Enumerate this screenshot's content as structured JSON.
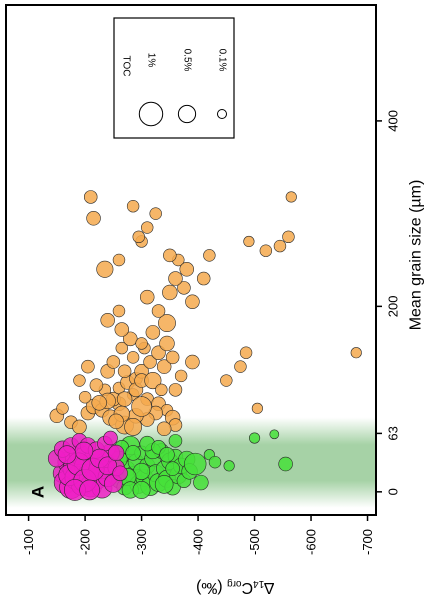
{
  "chart_data": {
    "type": "scatter",
    "orientation": "rotated-90",
    "panel_label": "A",
    "x_axis": {
      "label_main": "∆",
      "label_sub": "14",
      "label_mid": "C",
      "label_sub2": "org",
      "label_unit": " (‰)",
      "range": [
        -60,
        -715
      ],
      "ticks": [
        -100,
        -200,
        -300,
        -400,
        -500,
        -600,
        -700
      ],
      "tick_labels": [
        "-100",
        "-200",
        "-300",
        "-400",
        "-500",
        "-600",
        "-700"
      ]
    },
    "y_axis": {
      "label": "Mean grain size (µm)",
      "range": [
        -25,
        525
      ],
      "ticks": [
        0,
        63,
        200,
        400
      ],
      "tick_labels": [
        "0",
        "63",
        "200",
        "400"
      ]
    },
    "band": {
      "from": 0,
      "to": 63,
      "color": "#3a9c3a"
    },
    "legend": {
      "title": "TOC",
      "entries": [
        {
          "label": "1%",
          "toc": 1.0
        },
        {
          "label": "0.5%",
          "toc": 0.5
        },
        {
          "label": "0.1%",
          "toc": 0.1
        }
      ]
    },
    "colors": {
      "coarse": "#f5a94e",
      "mid": "#47e03a",
      "fine": "#ee1fc6"
    },
    "series": [
      {
        "group": "coarse",
        "points": [
          [
            -150,
            82,
            0.3
          ],
          [
            -160,
            90,
            0.2
          ],
          [
            -175,
            75,
            0.25
          ],
          [
            -190,
            70,
            0.3
          ],
          [
            -205,
            85,
            0.3
          ],
          [
            -215,
            92,
            0.35
          ],
          [
            -230,
            88,
            0.3
          ],
          [
            -245,
            80,
            0.4
          ],
          [
            -260,
            95,
            0.3
          ],
          [
            -270,
            72,
            0.55
          ],
          [
            -250,
            100,
            0.3
          ],
          [
            -235,
            110,
            0.2
          ],
          [
            -220,
            115,
            0.25
          ],
          [
            -260,
            112,
            0.2
          ],
          [
            -275,
            118,
            0.3
          ],
          [
            -290,
            122,
            0.25
          ],
          [
            -300,
            130,
            0.3
          ],
          [
            -315,
            140,
            0.25
          ],
          [
            -330,
            150,
            0.3
          ],
          [
            -345,
            160,
            0.35
          ],
          [
            -285,
            105,
            0.2
          ],
          [
            -270,
            100,
            0.35
          ],
          [
            -240,
            98,
            0.4
          ],
          [
            -225,
            96,
            0.35
          ],
          [
            -200,
            102,
            0.2
          ],
          [
            -190,
            120,
            0.2
          ],
          [
            -205,
            135,
            0.25
          ],
          [
            -240,
            130,
            0.3
          ],
          [
            -250,
            140,
            0.25
          ],
          [
            -265,
            155,
            0.2
          ],
          [
            -280,
            165,
            0.3
          ],
          [
            -305,
            155,
            0.2
          ],
          [
            -320,
            172,
            0.3
          ],
          [
            -345,
            182,
            0.5
          ],
          [
            -330,
            195,
            0.25
          ],
          [
            -310,
            210,
            0.3
          ],
          [
            -350,
            215,
            0.35
          ],
          [
            -375,
            220,
            0.25
          ],
          [
            -390,
            205,
            0.3
          ],
          [
            -360,
            230,
            0.3
          ],
          [
            -365,
            250,
            0.2
          ],
          [
            -350,
            255,
            0.25
          ],
          [
            -380,
            240,
            0.3
          ],
          [
            -410,
            230,
            0.25
          ],
          [
            -420,
            255,
            0.2
          ],
          [
            -240,
            185,
            0.3
          ],
          [
            -265,
            175,
            0.3
          ],
          [
            -260,
            195,
            0.2
          ],
          [
            -235,
            240,
            0.45
          ],
          [
            -260,
            250,
            0.2
          ],
          [
            -300,
            270,
            0.2
          ],
          [
            -310,
            285,
            0.2
          ],
          [
            -215,
            295,
            0.3
          ],
          [
            -490,
            270,
            0.15
          ],
          [
            -520,
            260,
            0.2
          ],
          [
            -545,
            265,
            0.2
          ],
          [
            -560,
            275,
            0.2
          ],
          [
            -565,
            318,
            0.15
          ],
          [
            -475,
            135,
            0.2
          ],
          [
            -485,
            150,
            0.2
          ],
          [
            -450,
            120,
            0.2
          ],
          [
            -505,
            90,
            0.15
          ],
          [
            -290,
            110,
            0.3
          ],
          [
            -310,
            100,
            0.25
          ],
          [
            -330,
            95,
            0.3
          ],
          [
            -345,
            88,
            0.2
          ],
          [
            -355,
            80,
            0.35
          ],
          [
            -360,
            72,
            0.25
          ],
          [
            -340,
            68,
            0.3
          ],
          [
            -300,
            120,
            0.3
          ],
          [
            -270,
            130,
            0.25
          ],
          [
            -285,
            145,
            0.2
          ],
          [
            -300,
            160,
            0.2
          ],
          [
            -320,
            120,
            0.45
          ],
          [
            -340,
            135,
            0.3
          ],
          [
            -355,
            145,
            0.25
          ],
          [
            -325,
            85,
            0.3
          ],
          [
            -310,
            78,
            0.3
          ],
          [
            -290,
            82,
            0.35
          ],
          [
            -285,
            70,
            0.5
          ],
          [
            -265,
            84,
            0.4
          ],
          [
            -255,
            76,
            0.35
          ],
          [
            -300,
            92,
            0.7
          ],
          [
            -335,
            110,
            0.2
          ],
          [
            -360,
            110,
            0.25
          ],
          [
            -370,
            125,
            0.2
          ],
          [
            -390,
            140,
            0.3
          ],
          [
            -295,
            275,
            0.2
          ],
          [
            -285,
            308,
            0.2
          ],
          [
            -325,
            300,
            0.2
          ],
          [
            -210,
            318,
            0.25
          ],
          [
            -680,
            150,
            0.15
          ]
        ]
      },
      {
        "group": "mid",
        "points": [
          [
            -250,
            30,
            0.4
          ],
          [
            -255,
            22,
            0.5
          ],
          [
            -260,
            12,
            0.35
          ],
          [
            -265,
            40,
            0.45
          ],
          [
            -270,
            5,
            0.4
          ],
          [
            -275,
            25,
            0.35
          ],
          [
            -280,
            50,
            0.6
          ],
          [
            -285,
            18,
            0.5
          ],
          [
            -290,
            32,
            0.4
          ],
          [
            -295,
            8,
            0.55
          ],
          [
            -300,
            42,
            0.3
          ],
          [
            -305,
            15,
            0.5
          ],
          [
            -310,
            28,
            0.4
          ],
          [
            -315,
            6,
            0.6
          ],
          [
            -320,
            36,
            0.45
          ],
          [
            -325,
            20,
            0.5
          ],
          [
            -330,
            10,
            0.55
          ],
          [
            -335,
            44,
            0.35
          ],
          [
            -340,
            25,
            0.4
          ],
          [
            -345,
            14,
            0.5
          ],
          [
            -350,
            33,
            0.45
          ],
          [
            -355,
            5,
            0.4
          ],
          [
            -360,
            38,
            0.35
          ],
          [
            -365,
            18,
            0.5
          ],
          [
            -370,
            28,
            0.4
          ],
          [
            -375,
            12,
            0.3
          ],
          [
            -380,
            35,
            0.45
          ],
          [
            -385,
            22,
            0.4
          ],
          [
            -395,
            30,
            0.85
          ],
          [
            -405,
            10,
            0.35
          ],
          [
            -420,
            40,
            0.15
          ],
          [
            -430,
            32,
            0.2
          ],
          [
            -455,
            28,
            0.15
          ],
          [
            -500,
            58,
            0.15
          ],
          [
            -555,
            30,
            0.3
          ],
          [
            -535,
            62,
            0.1
          ],
          [
            -265,
            48,
            0.3
          ],
          [
            -285,
            42,
            0.35
          ],
          [
            -300,
            22,
            0.45
          ],
          [
            -320,
            44,
            0.4
          ],
          [
            -340,
            8,
            0.55
          ],
          [
            -260,
            35,
            0.45
          ],
          [
            -275,
            16,
            0.5
          ],
          [
            -310,
            52,
            0.35
          ],
          [
            -330,
            48,
            0.3
          ],
          [
            -345,
            40,
            0.35
          ],
          [
            -280,
            2,
            0.45
          ],
          [
            -300,
            2,
            0.5
          ],
          [
            -355,
            25,
            0.3
          ],
          [
            -360,
            55,
            0.25
          ]
        ]
      },
      {
        "group": "fine",
        "points": [
          [
            -160,
            20,
            0.6
          ],
          [
            -165,
            10,
            0.9
          ],
          [
            -170,
            32,
            0.75
          ],
          [
            -175,
            5,
            0.95
          ],
          [
            -180,
            25,
            0.85
          ],
          [
            -185,
            15,
            1.0
          ],
          [
            -190,
            40,
            0.7
          ],
          [
            -195,
            8,
            0.9
          ],
          [
            -200,
            28,
            0.8
          ],
          [
            -205,
            18,
            0.75
          ],
          [
            -210,
            6,
            0.85
          ],
          [
            -215,
            35,
            0.7
          ],
          [
            -220,
            14,
            0.8
          ],
          [
            -225,
            24,
            0.75
          ],
          [
            -230,
            4,
            0.7
          ],
          [
            -235,
            32,
            0.6
          ],
          [
            -240,
            16,
            0.65
          ],
          [
            -245,
            42,
            0.55
          ],
          [
            -250,
            9,
            0.55
          ],
          [
            -255,
            26,
            0.45
          ],
          [
            -150,
            36,
            0.5
          ],
          [
            -160,
            46,
            0.45
          ],
          [
            -175,
            50,
            0.4
          ],
          [
            -190,
            55,
            0.35
          ],
          [
            -205,
            50,
            0.4
          ],
          [
            -220,
            45,
            0.45
          ],
          [
            -235,
            52,
            0.35
          ],
          [
            -245,
            58,
            0.3
          ],
          [
            -172,
            18,
            0.8
          ],
          [
            -188,
            30,
            0.9
          ],
          [
            -200,
            12,
            0.95
          ],
          [
            -214,
            24,
            0.9
          ],
          [
            -226,
            36,
            0.6
          ],
          [
            -182,
            2,
            0.8
          ],
          [
            -198,
            44,
            0.55
          ],
          [
            -208,
            2,
            0.7
          ],
          [
            -168,
            40,
            0.55
          ],
          [
            -240,
            28,
            0.55
          ],
          [
            -255,
            42,
            0.4
          ],
          [
            -262,
            20,
            0.35
          ]
        ]
      }
    ]
  }
}
